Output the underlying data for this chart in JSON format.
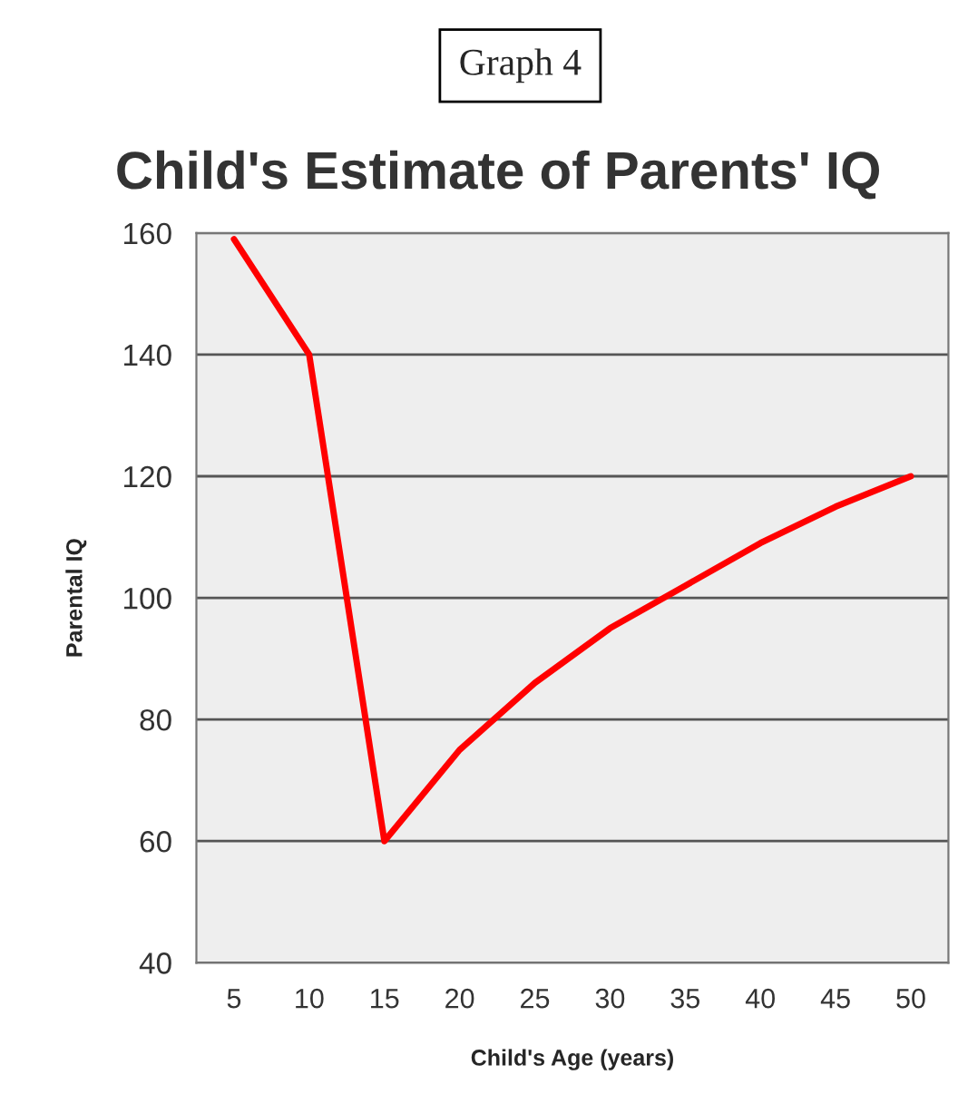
{
  "chart_data": {
    "type": "line",
    "title": "Graph 4",
    "subtitle": "Child's Estimate of Parents' IQ",
    "xlabel": "Child's Age (years)",
    "ylabel": "Parental IQ",
    "categories": [
      "5",
      "10",
      "15",
      "20",
      "25",
      "30",
      "35",
      "40",
      "45",
      "50"
    ],
    "series": [
      {
        "color": "#ff0000",
        "values": [
          159,
          140,
          60,
          75,
          86,
          95,
          102,
          109,
          115,
          120
        ]
      }
    ],
    "ylim": [
      40,
      160
    ],
    "yticks": [
      40,
      60,
      80,
      100,
      120,
      140,
      160
    ],
    "grid": "y",
    "legend": false,
    "marker": "none",
    "line_style": "solid"
  }
}
